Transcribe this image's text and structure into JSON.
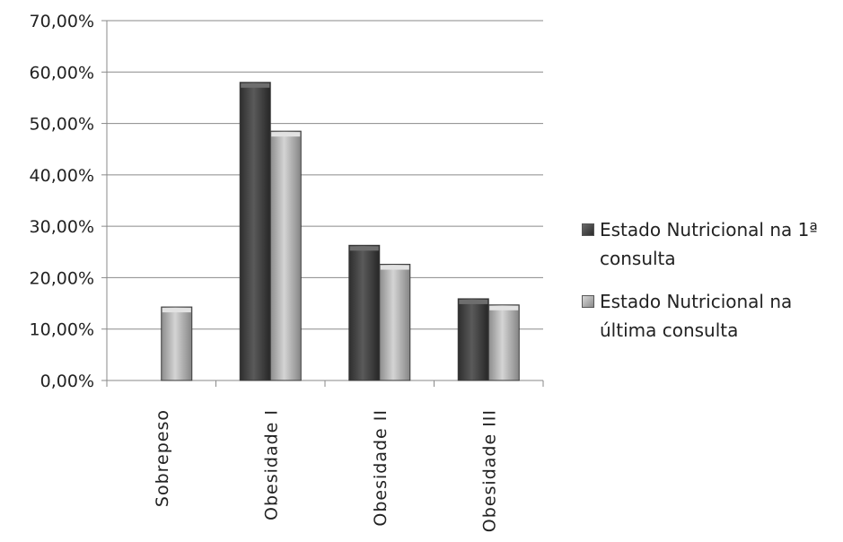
{
  "chart_data": {
    "type": "bar",
    "title": "",
    "xlabel": "",
    "ylabel": "",
    "categories": [
      "Sobrepeso",
      "Obesidade I",
      "Obesidade II",
      "Obesidade III"
    ],
    "series": [
      {
        "name": "Estado Nutricional na 1ª consulta",
        "values": [
          0,
          58.0,
          26.3,
          15.9
        ],
        "color": "#3f3f3f"
      },
      {
        "name": "Estado Nutricional na última consulta",
        "values": [
          14.3,
          48.5,
          22.6,
          14.7
        ],
        "color": "#a8a8a8"
      }
    ],
    "ylim": [
      0,
      70
    ],
    "yticks": [
      "0,00%",
      "10,00%",
      "20,00%",
      "30,00%",
      "40,00%",
      "50,00%",
      "60,00%",
      "70,00%"
    ],
    "grid": true,
    "legend_position": "right"
  }
}
